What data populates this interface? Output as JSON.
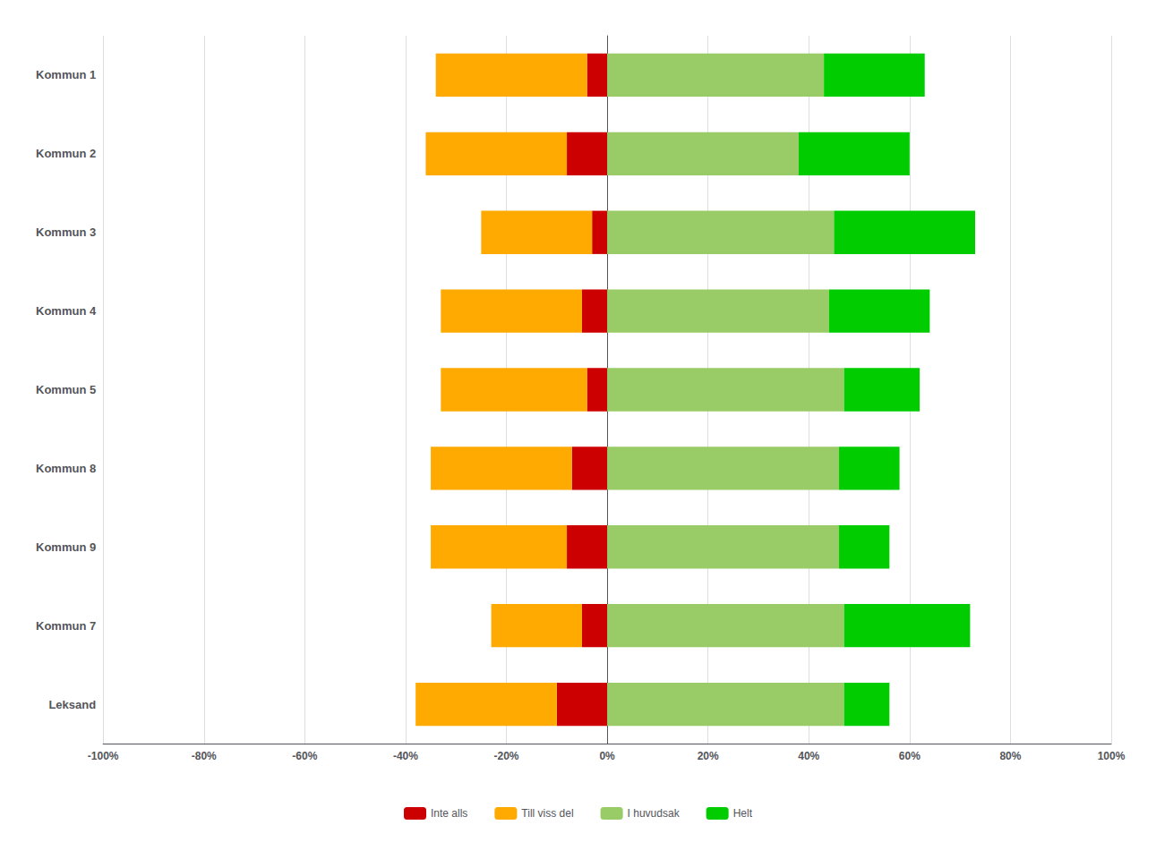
{
  "chart_data": {
    "type": "bar",
    "orientation": "horizontal",
    "stacked": true,
    "categories": [
      "Leksand",
      "Kommun 7",
      "Kommun 9",
      "Kommun 8",
      "Kommun 5",
      "Kommun 4",
      "Kommun 3",
      "Kommun 2",
      "Kommun 1"
    ],
    "series": [
      {
        "name": "Inte alls",
        "color": "#cc0000",
        "values": [
          -10,
          -5,
          -8,
          -7,
          -4,
          -5,
          -3,
          -8,
          -4
        ]
      },
      {
        "name": "Till viss del",
        "color": "#ffaa00",
        "values": [
          -28,
          -18,
          -27,
          -28,
          -29,
          -28,
          -22,
          -28,
          -30
        ]
      },
      {
        "name": "I huvudsak",
        "color": "#99cc66",
        "values": [
          47,
          47,
          46,
          46,
          47,
          44,
          45,
          38,
          43
        ]
      },
      {
        "name": "Helt",
        "color": "#00cc00",
        "values": [
          9,
          25,
          10,
          12,
          15,
          20,
          28,
          22,
          20
        ]
      }
    ],
    "xlim": [
      -100,
      100
    ],
    "xticks": [
      {
        "value": -100,
        "label": "-100%"
      },
      {
        "value": -80,
        "label": "-80%"
      },
      {
        "value": -60,
        "label": "-60%"
      },
      {
        "value": -40,
        "label": "-40%"
      },
      {
        "value": -20,
        "label": "-20%"
      },
      {
        "value": 0,
        "label": "0%"
      },
      {
        "value": 20,
        "label": "20%"
      },
      {
        "value": 40,
        "label": "40%"
      },
      {
        "value": 60,
        "label": "60%"
      },
      {
        "value": 80,
        "label": "80%"
      },
      {
        "value": 100,
        "label": "100%"
      }
    ],
    "grid": true,
    "legend": "bottom"
  }
}
